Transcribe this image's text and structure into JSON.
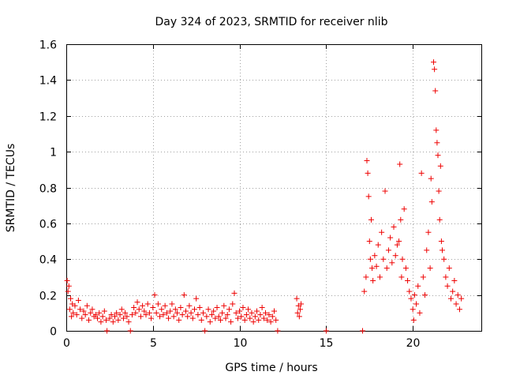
{
  "chart_data": {
    "type": "scatter",
    "title": "Day 324 of 2023, SRMTID for receiver nlib",
    "xlabel": "GPS time / hours",
    "ylabel": "SRMTID / TECUs",
    "xlim": [
      0,
      24
    ],
    "ylim": [
      0,
      1.6
    ],
    "grid": true,
    "marker": "+",
    "color": "#ee0000",
    "x_ticks": [
      0,
      5,
      10,
      15,
      20
    ],
    "x_tick_labels": [
      "0",
      "5",
      "10",
      "15",
      "20"
    ],
    "y_ticks": [
      0,
      0.2,
      0.4,
      0.6,
      0.8,
      1.0,
      1.2,
      1.4,
      1.6
    ],
    "y_tick_labels": [
      "0",
      "0.2",
      "0.4",
      "0.6",
      "0.8",
      "1",
      "1.2",
      "1.4",
      "1.6"
    ],
    "series": [
      {
        "name": "SRMTID",
        "points": [
          [
            0.05,
            0.28
          ],
          [
            0.1,
            0.22
          ],
          [
            0.15,
            0.25
          ],
          [
            0.2,
            0.12
          ],
          [
            0.25,
            0.18
          ],
          [
            0.3,
            0.08
          ],
          [
            0.35,
            0.15
          ],
          [
            0.4,
            0.1
          ],
          [
            0.5,
            0.14
          ],
          [
            0.6,
            0.09
          ],
          [
            0.7,
            0.17
          ],
          [
            0.8,
            0.12
          ],
          [
            0.9,
            0.07
          ],
          [
            1.0,
            0.11
          ],
          [
            1.1,
            0.09
          ],
          [
            1.2,
            0.14
          ],
          [
            1.3,
            0.06
          ],
          [
            1.4,
            0.1
          ],
          [
            1.5,
            0.12
          ],
          [
            1.6,
            0.08
          ],
          [
            1.7,
            0.09
          ],
          [
            1.8,
            0.07
          ],
          [
            1.9,
            0.1
          ],
          [
            2.0,
            0.05
          ],
          [
            2.1,
            0.08
          ],
          [
            2.2,
            0.11
          ],
          [
            2.3,
            0.06
          ],
          [
            2.35,
            0.0
          ],
          [
            2.5,
            0.07
          ],
          [
            2.6,
            0.09
          ],
          [
            2.7,
            0.05
          ],
          [
            2.8,
            0.08
          ],
          [
            2.9,
            0.1
          ],
          [
            3.0,
            0.06
          ],
          [
            3.1,
            0.09
          ],
          [
            3.2,
            0.12
          ],
          [
            3.3,
            0.07
          ],
          [
            3.4,
            0.1
          ],
          [
            3.5,
            0.08
          ],
          [
            3.6,
            0.05
          ],
          [
            3.7,
            0.0
          ],
          [
            3.8,
            0.09
          ],
          [
            3.9,
            0.13
          ],
          [
            4.0,
            0.1
          ],
          [
            4.1,
            0.16
          ],
          [
            4.2,
            0.12
          ],
          [
            4.3,
            0.08
          ],
          [
            4.4,
            0.14
          ],
          [
            4.5,
            0.11
          ],
          [
            4.6,
            0.09
          ],
          [
            4.7,
            0.15
          ],
          [
            4.8,
            0.1
          ],
          [
            4.9,
            0.07
          ],
          [
            5.0,
            0.13
          ],
          [
            5.1,
            0.2
          ],
          [
            5.2,
            0.1
          ],
          [
            5.3,
            0.15
          ],
          [
            5.4,
            0.08
          ],
          [
            5.5,
            0.12
          ],
          [
            5.6,
            0.09
          ],
          [
            5.7,
            0.14
          ],
          [
            5.8,
            0.1
          ],
          [
            5.9,
            0.07
          ],
          [
            6.0,
            0.11
          ],
          [
            6.1,
            0.15
          ],
          [
            6.2,
            0.08
          ],
          [
            6.3,
            0.12
          ],
          [
            6.4,
            0.1
          ],
          [
            6.5,
            0.06
          ],
          [
            6.6,
            0.13
          ],
          [
            6.7,
            0.09
          ],
          [
            6.8,
            0.2
          ],
          [
            6.9,
            0.11
          ],
          [
            7.0,
            0.08
          ],
          [
            7.1,
            0.14
          ],
          [
            7.2,
            0.1
          ],
          [
            7.3,
            0.07
          ],
          [
            7.4,
            0.12
          ],
          [
            7.5,
            0.18
          ],
          [
            7.6,
            0.09
          ],
          [
            7.7,
            0.13
          ],
          [
            7.8,
            0.06
          ],
          [
            7.9,
            0.1
          ],
          [
            8.0,
            0.0
          ],
          [
            8.1,
            0.08
          ],
          [
            8.2,
            0.12
          ],
          [
            8.3,
            0.05
          ],
          [
            8.4,
            0.09
          ],
          [
            8.5,
            0.11
          ],
          [
            8.6,
            0.07
          ],
          [
            8.7,
            0.13
          ],
          [
            8.8,
            0.08
          ],
          [
            8.9,
            0.06
          ],
          [
            9.0,
            0.1
          ],
          [
            9.1,
            0.14
          ],
          [
            9.2,
            0.07
          ],
          [
            9.3,
            0.09
          ],
          [
            9.4,
            0.12
          ],
          [
            9.5,
            0.05
          ],
          [
            9.6,
            0.15
          ],
          [
            9.7,
            0.21
          ],
          [
            9.8,
            0.1
          ],
          [
            9.9,
            0.07
          ],
          [
            10.0,
            0.11
          ],
          [
            10.1,
            0.08
          ],
          [
            10.2,
            0.13
          ],
          [
            10.3,
            0.06
          ],
          [
            10.4,
            0.09
          ],
          [
            10.5,
            0.12
          ],
          [
            10.6,
            0.07
          ],
          [
            10.7,
            0.1
          ],
          [
            10.8,
            0.05
          ],
          [
            10.9,
            0.08
          ],
          [
            11.0,
            0.11
          ],
          [
            11.1,
            0.06
          ],
          [
            11.2,
            0.09
          ],
          [
            11.3,
            0.13
          ],
          [
            11.4,
            0.07
          ],
          [
            11.5,
            0.1
          ],
          [
            11.6,
            0.06
          ],
          [
            11.7,
            0.09
          ],
          [
            11.8,
            0.05
          ],
          [
            11.9,
            0.08
          ],
          [
            12.0,
            0.11
          ],
          [
            12.1,
            0.06
          ],
          [
            12.2,
            0.0
          ],
          [
            13.3,
            0.18
          ],
          [
            13.35,
            0.1
          ],
          [
            13.4,
            0.14
          ],
          [
            13.45,
            0.08
          ],
          [
            13.5,
            0.12
          ],
          [
            13.55,
            0.15
          ],
          [
            15.0,
            0.0
          ],
          [
            17.1,
            0.0
          ],
          [
            17.2,
            0.22
          ],
          [
            17.3,
            0.3
          ],
          [
            17.35,
            0.95
          ],
          [
            17.4,
            0.88
          ],
          [
            17.45,
            0.75
          ],
          [
            17.5,
            0.5
          ],
          [
            17.55,
            0.4
          ],
          [
            17.6,
            0.62
          ],
          [
            17.65,
            0.35
          ],
          [
            17.7,
            0.28
          ],
          [
            17.8,
            0.42
          ],
          [
            17.9,
            0.36
          ],
          [
            18.0,
            0.48
          ],
          [
            18.1,
            0.3
          ],
          [
            18.2,
            0.55
          ],
          [
            18.3,
            0.4
          ],
          [
            18.4,
            0.78
          ],
          [
            18.5,
            0.35
          ],
          [
            18.6,
            0.45
          ],
          [
            18.7,
            0.52
          ],
          [
            18.8,
            0.38
          ],
          [
            18.9,
            0.58
          ],
          [
            19.0,
            0.42
          ],
          [
            19.1,
            0.48
          ],
          [
            19.2,
            0.5
          ],
          [
            19.25,
            0.93
          ],
          [
            19.3,
            0.62
          ],
          [
            19.35,
            0.3
          ],
          [
            19.4,
            0.4
          ],
          [
            19.5,
            0.68
          ],
          [
            19.6,
            0.35
          ],
          [
            19.7,
            0.28
          ],
          [
            19.8,
            0.22
          ],
          [
            19.9,
            0.18
          ],
          [
            20.0,
            0.12
          ],
          [
            20.05,
            0.06
          ],
          [
            20.1,
            0.2
          ],
          [
            20.2,
            0.15
          ],
          [
            20.3,
            0.25
          ],
          [
            20.4,
            0.1
          ],
          [
            20.5,
            0.88
          ],
          [
            20.6,
            0.3
          ],
          [
            20.7,
            0.2
          ],
          [
            20.8,
            0.45
          ],
          [
            20.9,
            0.55
          ],
          [
            21.0,
            0.35
          ],
          [
            21.05,
            0.85
          ],
          [
            21.1,
            0.72
          ],
          [
            21.2,
            1.5
          ],
          [
            21.25,
            1.46
          ],
          [
            21.3,
            1.34
          ],
          [
            21.35,
            1.12
          ],
          [
            21.4,
            1.05
          ],
          [
            21.45,
            0.98
          ],
          [
            21.5,
            0.78
          ],
          [
            21.55,
            0.62
          ],
          [
            21.6,
            0.92
          ],
          [
            21.65,
            0.5
          ],
          [
            21.7,
            0.45
          ],
          [
            21.8,
            0.4
          ],
          [
            21.9,
            0.3
          ],
          [
            22.0,
            0.25
          ],
          [
            22.1,
            0.35
          ],
          [
            22.2,
            0.18
          ],
          [
            22.3,
            0.22
          ],
          [
            22.4,
            0.28
          ],
          [
            22.5,
            0.15
          ],
          [
            22.6,
            0.2
          ],
          [
            22.7,
            0.12
          ],
          [
            22.8,
            0.18
          ]
        ]
      }
    ]
  }
}
